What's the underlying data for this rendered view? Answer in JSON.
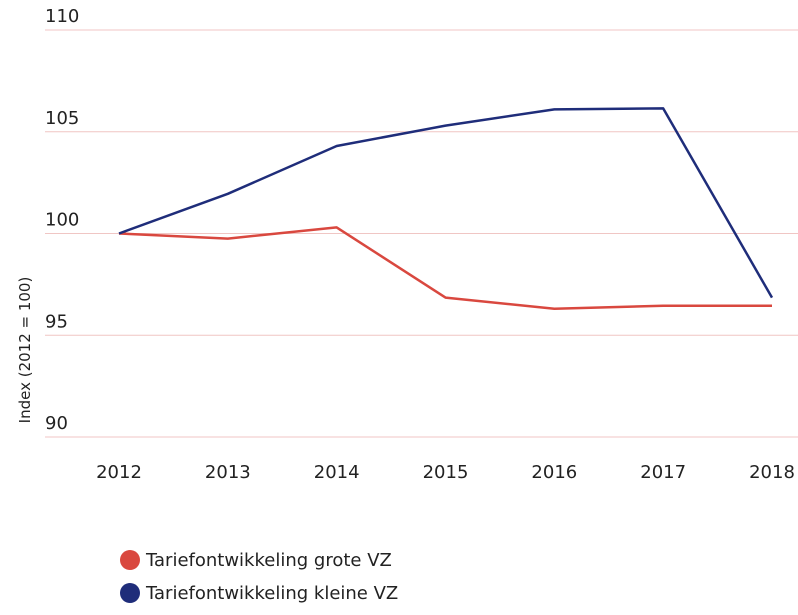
{
  "chart_data": {
    "type": "line",
    "y_label": "Index (2012 = 100)",
    "categories": [
      "2012",
      "2013",
      "2014",
      "2015",
      "2016",
      "2017",
      "2018"
    ],
    "series": [
      {
        "name": "Tariefontwikkeling grote VZ",
        "color": "#d9483f",
        "values": [
          100,
          99.75,
          100.3,
          96.85,
          96.3,
          96.45,
          96.45
        ]
      },
      {
        "name": "Tariefontwikkeling kleine VZ",
        "color": "#1f2d7a",
        "values": [
          100,
          101.95,
          104.3,
          105.3,
          106.1,
          106.15,
          96.85
        ]
      }
    ],
    "ylim": [
      90,
      110
    ],
    "yticks": [
      90,
      95,
      100,
      105,
      110
    ],
    "grid": true,
    "grid_color": "#f0c6c4"
  }
}
